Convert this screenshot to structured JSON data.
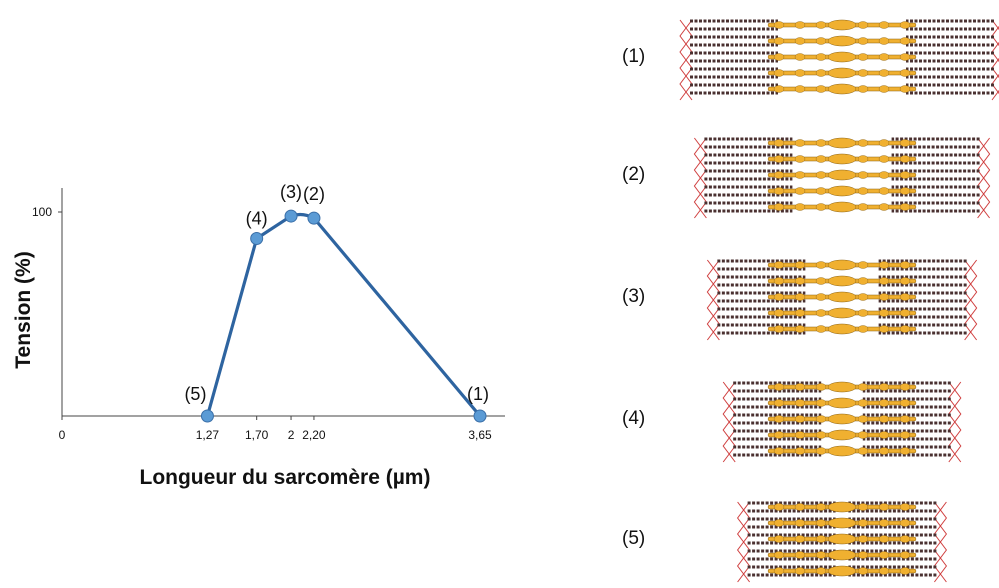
{
  "chart_data": {
    "type": "line",
    "title": "",
    "xlabel": "Longueur du sarcomère (µm)",
    "ylabel": "Tension (%)",
    "x_ticks": [
      "0",
      "1,27",
      "1,70",
      "2",
      "2,20",
      "3,65"
    ],
    "y_ticks": [
      "100"
    ],
    "xlim": [
      0,
      3.65
    ],
    "ylim": [
      0,
      100
    ],
    "grid": false,
    "series": [
      {
        "color": "#2e64a0",
        "marker_color": "#5b9bd5",
        "points": [
          {
            "x": 1.27,
            "y": 0,
            "label": "(5)"
          },
          {
            "x": 1.7,
            "y": 87,
            "label": "(4)"
          },
          {
            "x": 2.0,
            "y": 98,
            "label": "(3)"
          },
          {
            "x": 2.2,
            "y": 97,
            "label": "(2)"
          },
          {
            "x": 3.65,
            "y": 0,
            "label": "(1)"
          }
        ]
      }
    ]
  },
  "sarcomere_panels": [
    {
      "label": "(1)",
      "stretch": 1.0
    },
    {
      "label": "(2)",
      "stretch": 0.8
    },
    {
      "label": "(3)",
      "stretch": 0.62
    },
    {
      "label": "(4)",
      "stretch": 0.4
    },
    {
      "label": "(5)",
      "stretch": 0.2
    }
  ],
  "colors": {
    "thick_filament": "#f0b030",
    "thin_filament": "#4a3030",
    "z_line": "#d04040"
  }
}
